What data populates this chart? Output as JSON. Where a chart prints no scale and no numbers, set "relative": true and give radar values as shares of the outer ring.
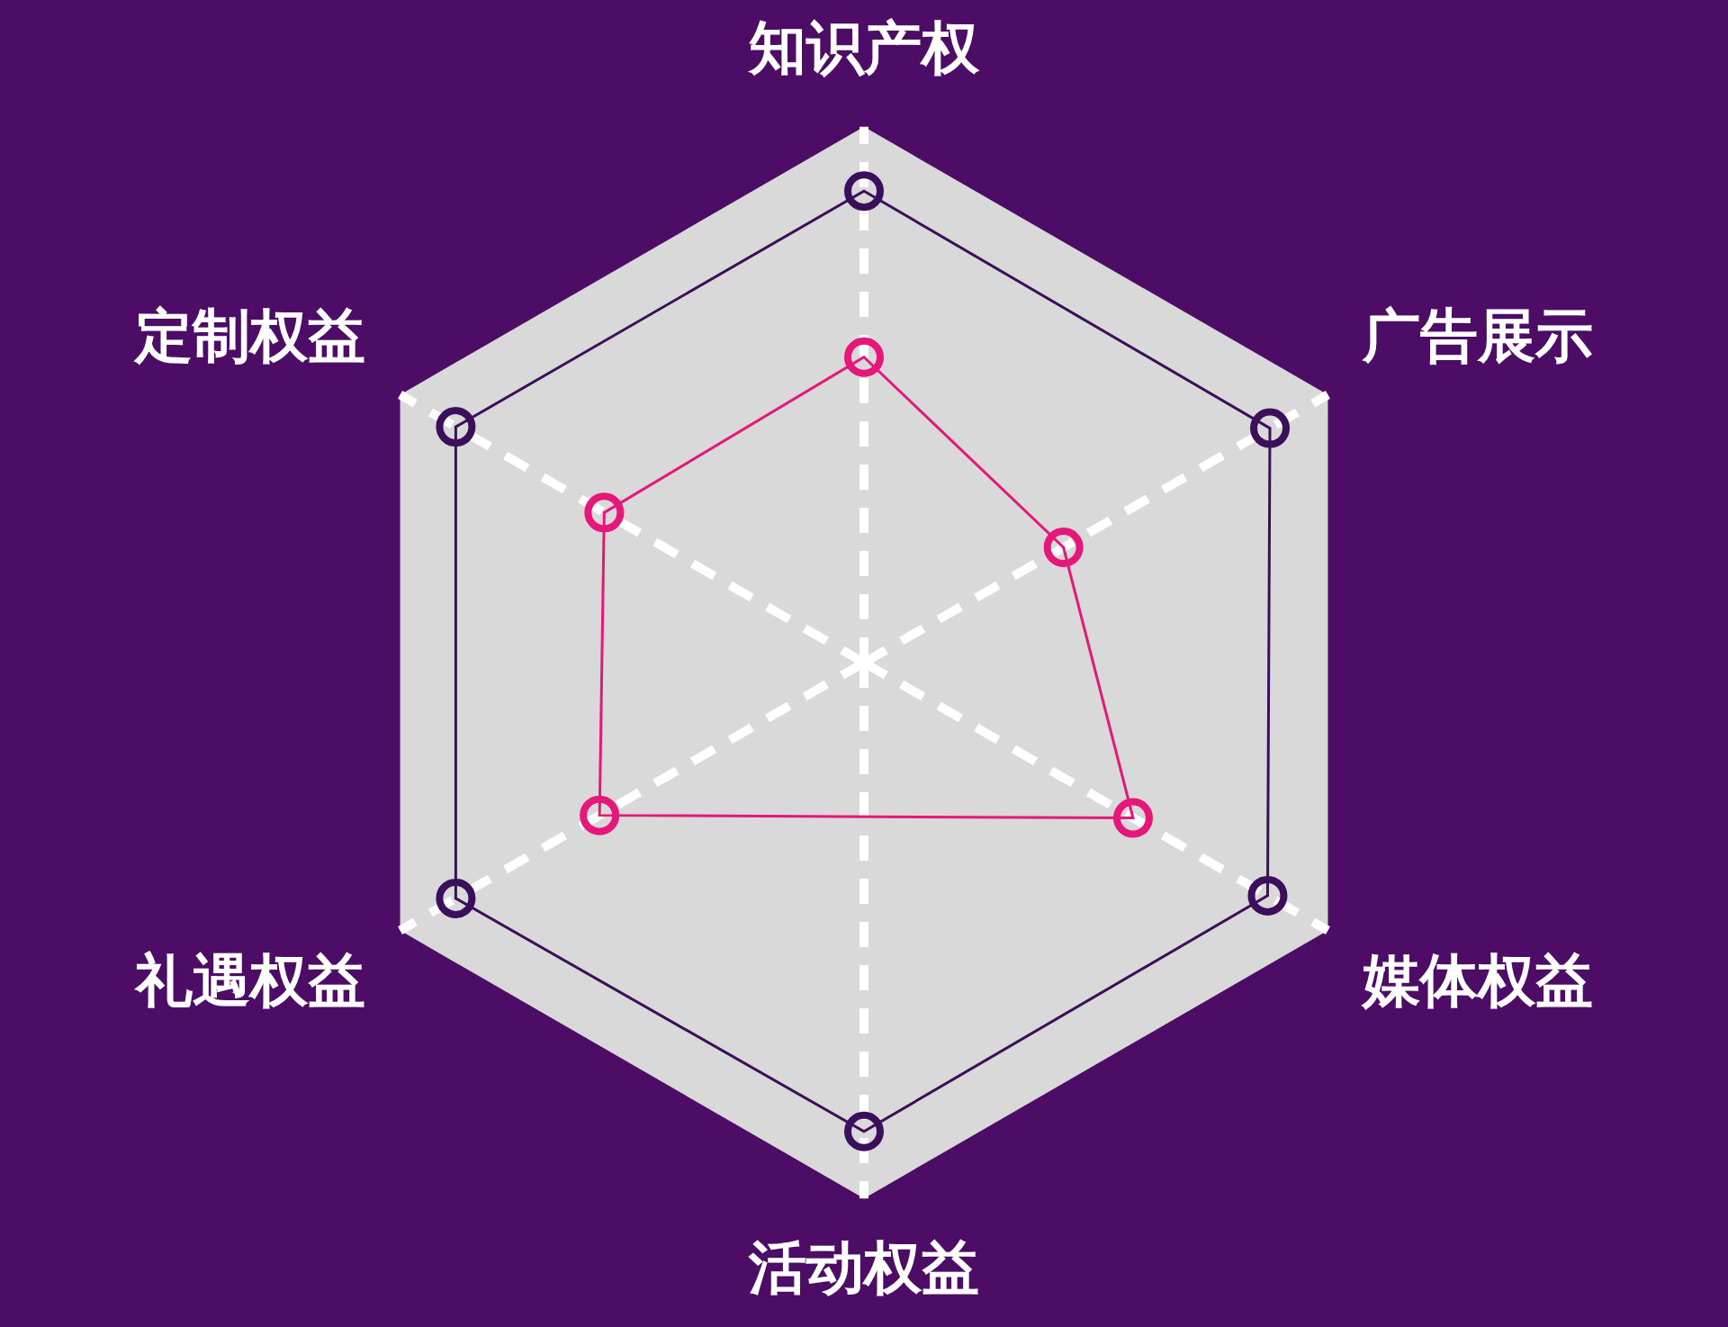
{
  "chart_data": {
    "type": "radar",
    "relative": true,
    "grid": true,
    "marker": "circle",
    "legend": false,
    "categories": [
      "知识产权",
      "广告展示",
      "媒体权益",
      "活动权益",
      "礼遇权益",
      "定制权益"
    ],
    "series": [
      {
        "color": "#3b0f5c",
        "values": [
          0.88,
          0.875,
          0.87,
          0.875,
          0.88,
          0.88
        ]
      },
      {
        "color": "#e5177b",
        "values": [
          0.57,
          0.43,
          0.58,
          null,
          0.57,
          0.56
        ]
      }
    ]
  }
}
